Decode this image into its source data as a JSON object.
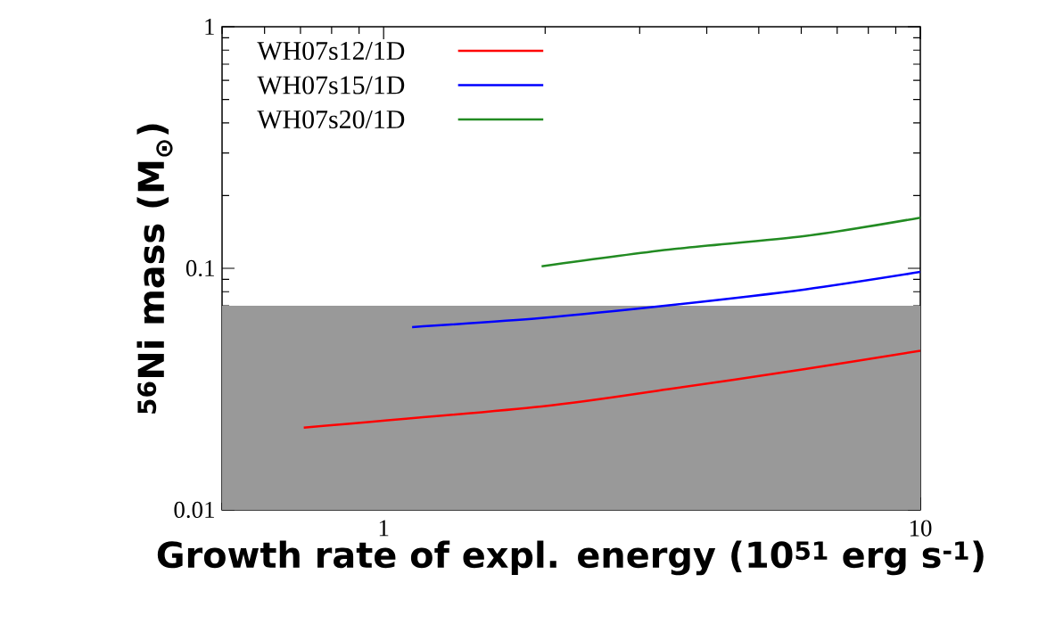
{
  "chart_data": {
    "type": "line",
    "xlabel": "Growth rate of expl. energy (10$^{51}$ erg s$^{-1}$)",
    "ylabel": "$^{56}$Ni mass (M$_{⊙}$)",
    "log": "xy",
    "xlim": [
      0.5,
      10
    ],
    "ylim": [
      0.01,
      1
    ],
    "xticks": [
      {
        "value": 0.5,
        "label": null
      },
      {
        "value": 0.6,
        "label": null
      },
      {
        "value": 0.7,
        "label": null
      },
      {
        "value": 0.8,
        "label": null
      },
      {
        "value": 0.9,
        "label": null
      },
      1,
      {
        "value": 2,
        "label": null
      },
      {
        "value": 3,
        "label": null
      },
      {
        "value": 4,
        "label": null
      },
      {
        "value": 5,
        "label": null
      },
      {
        "value": 6,
        "label": null
      },
      {
        "value": 7,
        "label": null
      },
      {
        "value": 8,
        "label": null
      },
      {
        "value": 9,
        "label": null
      },
      10
    ],
    "yticks": [
      0.01,
      {
        "value": 0.02,
        "label": null
      },
      {
        "value": 0.03,
        "label": null
      },
      {
        "value": 0.04,
        "label": null
      },
      {
        "value": 0.05,
        "label": null
      },
      {
        "value": 0.06,
        "label": null
      },
      {
        "value": 0.07,
        "label": null
      },
      {
        "value": 0.08,
        "label": null
      },
      {
        "value": 0.09,
        "label": null
      },
      0.1,
      {
        "value": 0.2,
        "label": null
      },
      {
        "value": 0.3,
        "label": null
      },
      {
        "value": 0.4,
        "label": null
      },
      {
        "value": 0.5,
        "label": null
      },
      {
        "value": 0.6,
        "label": null
      },
      {
        "value": 0.7,
        "label": null
      },
      {
        "value": 0.8,
        "label": null
      },
      {
        "value": 0.9,
        "label": null
      },
      1
    ],
    "legend": "top left",
    "marker": "none",
    "line_style": "solid",
    "bands": [
      {
        "axis": "y",
        "from": 0.01,
        "to": 0.07,
        "color": "#999999"
      }
    ],
    "series": [
      {
        "name": "WH07s12/1D",
        "color": "#ff0000",
        "x": [
          0.71,
          1.97,
          3.4,
          6.1,
          10
        ],
        "values": [
          0.0219,
          0.0268,
          0.0316,
          0.0383,
          0.0456
        ]
      },
      {
        "name": "WH07s15/1D",
        "color": "#0000ff",
        "x": [
          1.13,
          1.97,
          3.4,
          6.1,
          10
        ],
        "values": [
          0.0571,
          0.0623,
          0.0703,
          0.0818,
          0.0966
        ]
      },
      {
        "name": "WH07s20/1D",
        "color": "#228b22",
        "x": [
          1.97,
          3.4,
          6.1,
          10
        ],
        "values": [
          0.102,
          0.1195,
          0.136,
          0.162
        ]
      }
    ]
  }
}
